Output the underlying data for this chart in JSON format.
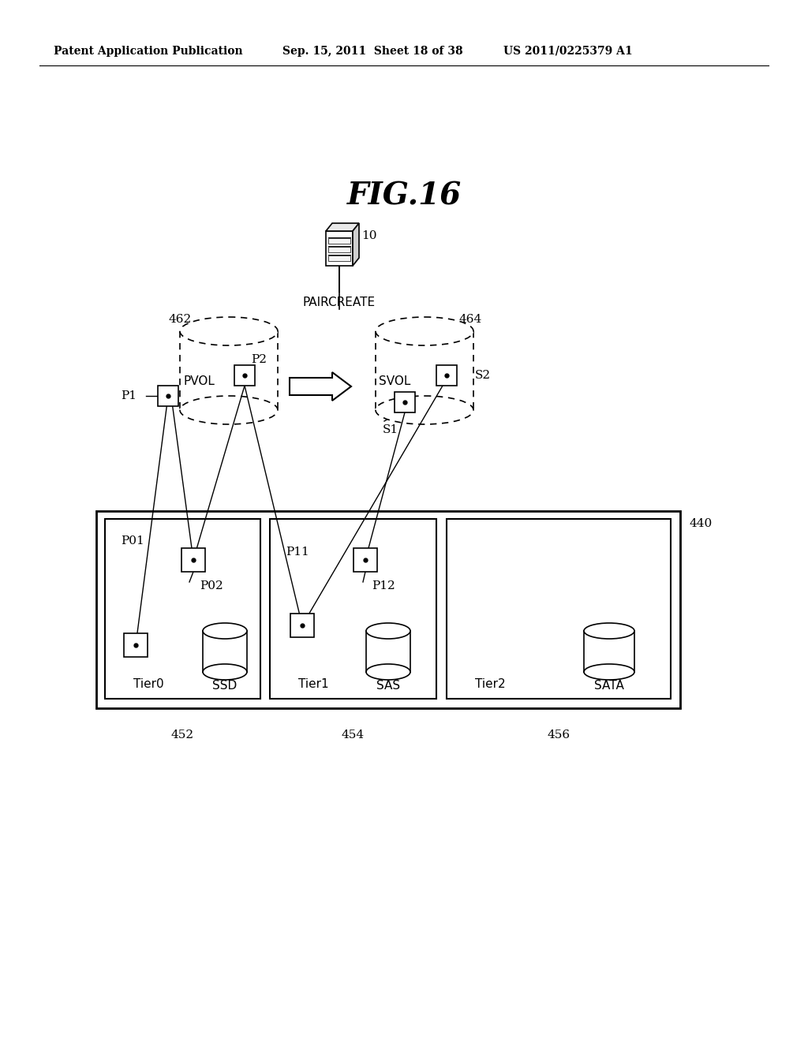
{
  "bg_color": "#ffffff",
  "header_left": "Patent Application Publication",
  "header_mid": "Sep. 15, 2011  Sheet 18 of 38",
  "header_right": "US 2011/0225379 A1",
  "fig_title": "FIG.16",
  "label_10": "10",
  "label_paircreate": "PAIRCREATE",
  "label_462": "462",
  "label_464": "464",
  "label_pvol": "PVOL",
  "label_svol": "SVOL",
  "label_p1": "P1",
  "label_p2": "P2",
  "label_s1": "S1",
  "label_s2": "S2",
  "label_440": "440",
  "label_452": "452",
  "label_454": "454",
  "label_456": "456",
  "label_tier0": "Tier0",
  "label_tier1": "Tier1",
  "label_tier2": "Tier2",
  "label_ssd": "SSD",
  "label_sas": "SAS",
  "label_sata": "SATA",
  "label_p01": "P01",
  "label_p02": "P02",
  "label_p11": "P11",
  "label_p12": "P12"
}
